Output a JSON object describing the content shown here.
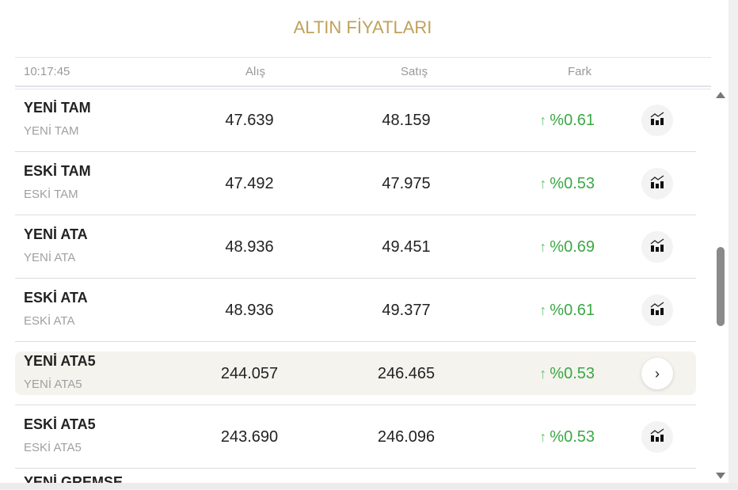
{
  "title": "ALTIN FİYATLARI",
  "header": {
    "time": "10:17:45",
    "buy": "Alış",
    "sell": "Satış",
    "change": "Fark"
  },
  "colors": {
    "title": "#c0a15a",
    "up": "#3aa845",
    "highlight": "#f4f3ee"
  },
  "rows": [
    {
      "name": "YENİ TAM",
      "sub": "YENİ TAM",
      "buy": "47.639",
      "sell": "48.159",
      "change": "%0.61",
      "arrow": "↑",
      "icon": "chart-icon"
    },
    {
      "name": "ESKİ TAM",
      "sub": "ESKİ TAM",
      "buy": "47.492",
      "sell": "47.975",
      "change": "%0.53",
      "arrow": "↑",
      "icon": "chart-icon"
    },
    {
      "name": "YENİ ATA",
      "sub": "YENİ ATA",
      "buy": "48.936",
      "sell": "49.451",
      "change": "%0.69",
      "arrow": "↑",
      "icon": "chart-icon"
    },
    {
      "name": "ESKİ ATA",
      "sub": "ESKİ ATA",
      "buy": "48.936",
      "sell": "49.377",
      "change": "%0.61",
      "arrow": "↑",
      "icon": "chart-icon"
    },
    {
      "name": "YENİ ATA5",
      "sub": "YENİ ATA5",
      "buy": "244.057",
      "sell": "246.465",
      "change": "%0.53",
      "arrow": "↑",
      "icon": "chevron-right-icon",
      "chevron": "›"
    },
    {
      "name": "ESKİ ATA5",
      "sub": "ESKİ ATA5",
      "buy": "243.690",
      "sell": "246.096",
      "change": "%0.53",
      "arrow": "↑",
      "icon": "chart-icon"
    },
    {
      "name": "YENİ GREMSE",
      "sub": "",
      "buy": "",
      "sell": "",
      "change": "",
      "arrow": "",
      "icon": "chart-icon"
    }
  ]
}
